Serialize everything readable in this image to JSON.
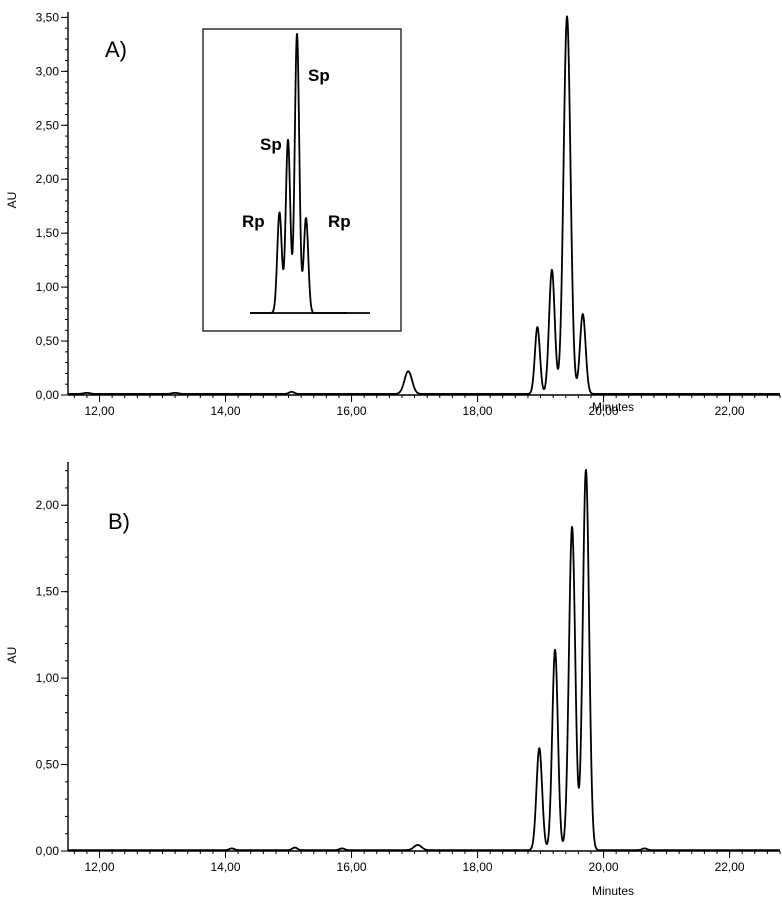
{
  "chart_data": [
    {
      "panel": "A)",
      "type": "line",
      "xlabel": "Minutes",
      "ylabel": "AU",
      "xlim": [
        11.5,
        22.8
      ],
      "ylim": [
        0,
        3.55
      ],
      "xticks": [
        12,
        14,
        16,
        18,
        20,
        22
      ],
      "yticks": [
        0,
        0.5,
        1,
        1.5,
        2,
        2.5,
        3,
        3.5
      ],
      "xtick_labels": [
        "12,00",
        "14,00",
        "16,00",
        "18,00",
        "20,00",
        "22,00"
      ],
      "ytick_labels": [
        "0,00",
        "0,50",
        "1,00",
        "1,50",
        "2,00",
        "2,50",
        "3,00",
        "3,50"
      ],
      "baseline": 0.01,
      "peaks": [
        {
          "x": 11.8,
          "height": 0.01,
          "width": 0.05
        },
        {
          "x": 13.2,
          "height": 0.01,
          "width": 0.05
        },
        {
          "x": 15.05,
          "height": 0.02,
          "width": 0.04
        },
        {
          "x": 16.9,
          "height": 0.21,
          "width": 0.06
        },
        {
          "x": 18.95,
          "height": 0.62,
          "width": 0.04
        },
        {
          "x": 19.18,
          "height": 1.15,
          "width": 0.045
        },
        {
          "x": 19.42,
          "height": 3.5,
          "width": 0.055
        },
        {
          "x": 19.67,
          "height": 0.74,
          "width": 0.045
        }
      ],
      "inset": {
        "peaks": [
          {
            "x": 0.15,
            "height": 0.36,
            "label": "Rp"
          },
          {
            "x": 0.32,
            "height": 0.62,
            "label": "Sp"
          },
          {
            "x": 0.5,
            "height": 1.0,
            "label": "Sp"
          },
          {
            "x": 0.68,
            "height": 0.34,
            "label": "Rp"
          }
        ]
      }
    },
    {
      "panel": "B)",
      "type": "line",
      "xlabel": "Minutes",
      "ylabel": "AU",
      "xlim": [
        11.5,
        22.8
      ],
      "ylim": [
        0,
        2.25
      ],
      "xticks": [
        12,
        14,
        16,
        18,
        20,
        22
      ],
      "yticks": [
        0,
        0.5,
        1,
        1.5,
        2
      ],
      "xtick_labels": [
        "12,00",
        "14,00",
        "16,00",
        "18,00",
        "20,00",
        "22,00"
      ],
      "ytick_labels": [
        "0,00",
        "0,50",
        "1,00",
        "1,50",
        "2,00"
      ],
      "baseline": 0.005,
      "peaks": [
        {
          "x": 14.1,
          "height": 0.01,
          "width": 0.04
        },
        {
          "x": 15.1,
          "height": 0.015,
          "width": 0.04
        },
        {
          "x": 15.85,
          "height": 0.01,
          "width": 0.04
        },
        {
          "x": 17.05,
          "height": 0.03,
          "width": 0.06
        },
        {
          "x": 18.98,
          "height": 0.59,
          "width": 0.045
        },
        {
          "x": 19.23,
          "height": 1.16,
          "width": 0.045
        },
        {
          "x": 19.5,
          "height": 1.87,
          "width": 0.05
        },
        {
          "x": 19.72,
          "height": 2.2,
          "width": 0.05
        },
        {
          "x": 20.65,
          "height": 0.01,
          "width": 0.04
        }
      ]
    }
  ]
}
